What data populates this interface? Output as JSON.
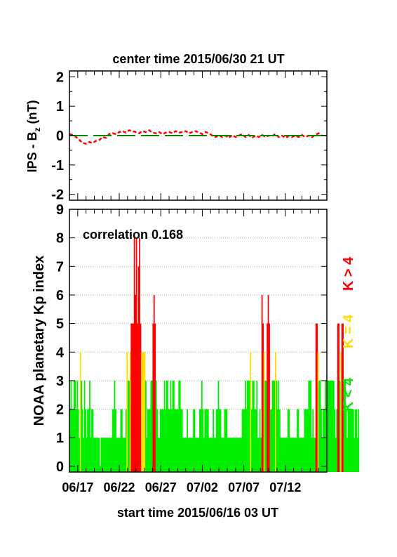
{
  "chart_data": [
    {
      "type": "line",
      "title": "center time 2015/06/30 21 UT",
      "ylabel_main": "IPS - B",
      "ylabel_sub": "z",
      "ylabel_unit": " (nT)",
      "ylim": [
        -2.2,
        2.2
      ],
      "yticks": [
        "2",
        "1",
        "0",
        "-1",
        "-2"
      ],
      "ytick_values": [
        2,
        1,
        0,
        -1,
        -2
      ],
      "xlim": [
        0,
        31
      ],
      "series": [
        {
          "style": "dashed",
          "color": "#ff0000",
          "x": [
            0,
            0.6,
            1.2,
            1.6,
            2.0,
            2.4,
            2.8,
            3.2,
            3.6,
            4.0,
            4.4,
            4.8,
            5.2,
            5.6,
            6.0,
            6.4,
            6.8,
            7.2,
            7.6,
            8.0,
            8.4,
            8.8,
            9.2,
            9.6,
            10.0,
            10.4,
            10.8,
            11.2,
            11.6,
            12.0,
            12.4,
            12.8,
            13.2,
            13.6,
            14.0,
            14.4,
            14.8,
            15.2,
            15.6,
            16.0,
            16.4,
            16.8,
            17.2,
            17.6,
            18.0,
            18.4,
            18.8,
            19.2,
            19.6,
            20.0,
            20.4,
            20.8,
            21.2,
            21.6,
            22.0,
            22.4,
            22.8,
            23.2,
            23.6,
            24.0,
            24.4,
            24.8,
            25.2,
            25.6,
            26.0,
            26.4,
            26.8,
            27.2,
            27.6,
            28.0,
            28.4,
            28.8,
            29.2,
            29.6,
            30.0,
            30.4
          ],
          "y": [
            0.05,
            0.0,
            -0.15,
            -0.25,
            -0.28,
            -0.22,
            -0.25,
            -0.18,
            -0.15,
            -0.05,
            -0.08,
            0.05,
            0.08,
            0.05,
            0.12,
            0.15,
            0.1,
            0.18,
            0.15,
            0.12,
            0.08,
            0.15,
            0.12,
            0.18,
            0.1,
            0.08,
            0.12,
            0.05,
            0.1,
            0.12,
            0.08,
            0.15,
            0.1,
            0.12,
            0.15,
            0.08,
            0.12,
            0.15,
            0.1,
            0.05,
            0.12,
            0.08,
            0.0,
            -0.05,
            0.02,
            -0.05,
            0.0,
            -0.08,
            0.02,
            -0.05,
            0.0,
            0.05,
            -0.05,
            0.02,
            -0.08,
            0.0,
            -0.05,
            0.02,
            -0.05,
            0.0,
            -0.02,
            0.05,
            -0.05,
            0.0,
            -0.08,
            -0.02,
            -0.05,
            0.0,
            -0.05,
            0.02,
            -0.05,
            0.0,
            -0.05,
            0.02,
            0.08,
            0.0
          ]
        },
        {
          "style": "long-dash",
          "color": "#008800",
          "x": [
            0,
            31
          ],
          "y": [
            0,
            0
          ]
        }
      ]
    },
    {
      "type": "bar",
      "annotation": "correlation 0.168",
      "ylabel": "NOAA planetary Kp index",
      "ylim": [
        -0.2,
        9
      ],
      "yticks": [
        "9",
        "8",
        "7",
        "6",
        "5",
        "4",
        "3",
        "2",
        "1",
        "0"
      ],
      "ytick_values": [
        9,
        8,
        7,
        6,
        5,
        4,
        3,
        2,
        1,
        0
      ],
      "gridlines": [
        8,
        7,
        6,
        5,
        4,
        3,
        2,
        1
      ],
      "xlim": [
        0,
        31
      ],
      "xlabel": "start time 2015/06/16 03 UT",
      "xticks": [
        "06/17",
        "06/22",
        "06/27",
        "07/02",
        "07/07",
        "07/12"
      ],
      "xtick_values": [
        1,
        6,
        11,
        16,
        21,
        26
      ],
      "bar_width_days": 0.125,
      "colors": {
        "low": "#00ee00",
        "mid": "#ffdd00",
        "high": "#ff0000"
      },
      "legend": [
        {
          "label": "K > 4",
          "color": "#ff0000"
        },
        {
          "label": "K = 4",
          "color": "#ffdd00"
        },
        {
          "label": "K < 4",
          "color": "#00ee00"
        }
      ],
      "values": [
        2,
        3,
        2,
        2,
        3,
        3,
        2,
        3,
        2,
        1,
        4,
        3,
        2,
        1,
        3,
        2,
        1,
        2,
        2,
        3,
        1,
        2,
        2,
        1,
        1,
        1,
        1,
        1,
        1,
        0,
        1,
        1,
        1,
        1,
        1,
        1,
        1,
        1,
        1,
        1,
        1,
        2,
        2,
        3,
        2,
        1,
        1,
        1,
        1,
        2,
        2,
        1,
        1,
        1,
        2,
        4,
        3,
        3,
        4,
        5,
        5,
        5,
        8,
        6,
        8,
        5,
        7,
        8,
        5,
        4,
        4,
        4,
        4,
        3,
        1,
        2,
        2,
        2,
        3,
        3,
        5,
        6,
        5,
        3,
        2,
        1,
        1,
        2,
        2,
        2,
        2,
        3,
        2,
        3,
        3,
        2,
        2,
        3,
        2,
        3,
        3,
        2,
        2,
        2,
        2,
        3,
        3,
        2,
        2,
        1,
        1,
        1,
        1,
        2,
        1,
        1,
        1,
        1,
        1,
        2,
        2,
        1,
        1,
        1,
        1,
        2,
        2,
        3,
        2,
        1,
        2,
        2,
        2,
        2,
        1,
        1,
        1,
        1,
        2,
        1,
        1,
        2,
        2,
        3,
        2,
        2,
        1,
        1,
        1,
        2,
        2,
        2,
        1,
        1,
        1,
        1,
        1,
        1,
        1,
        1,
        1,
        1,
        1,
        1,
        1,
        1,
        2,
        2,
        2,
        3,
        2,
        3,
        3,
        3,
        4,
        2,
        3,
        3,
        2,
        2,
        3,
        1,
        1,
        2,
        1,
        6,
        5,
        4,
        3,
        3,
        5,
        6,
        5,
        2,
        2,
        3,
        3,
        3,
        4,
        3,
        2,
        3,
        2,
        1,
        1,
        1,
        1,
        1,
        1,
        1,
        2,
        2,
        1,
        1,
        1,
        1,
        1,
        1,
        1,
        2,
        2,
        1,
        1,
        1,
        1,
        1,
        2,
        2,
        2,
        2,
        3,
        3,
        3,
        1,
        2,
        1,
        1,
        5,
        5,
        4,
        3,
        3,
        2,
        1,
        2,
        2,
        3,
        2,
        3,
        3,
        3,
        3,
        3,
        3,
        3,
        2,
        1,
        2,
        5,
        5,
        3,
        4,
        5,
        5,
        3,
        3,
        2,
        1,
        2,
        2,
        2,
        2,
        2,
        2,
        1,
        2,
        2,
        1,
        2
      ]
    }
  ]
}
